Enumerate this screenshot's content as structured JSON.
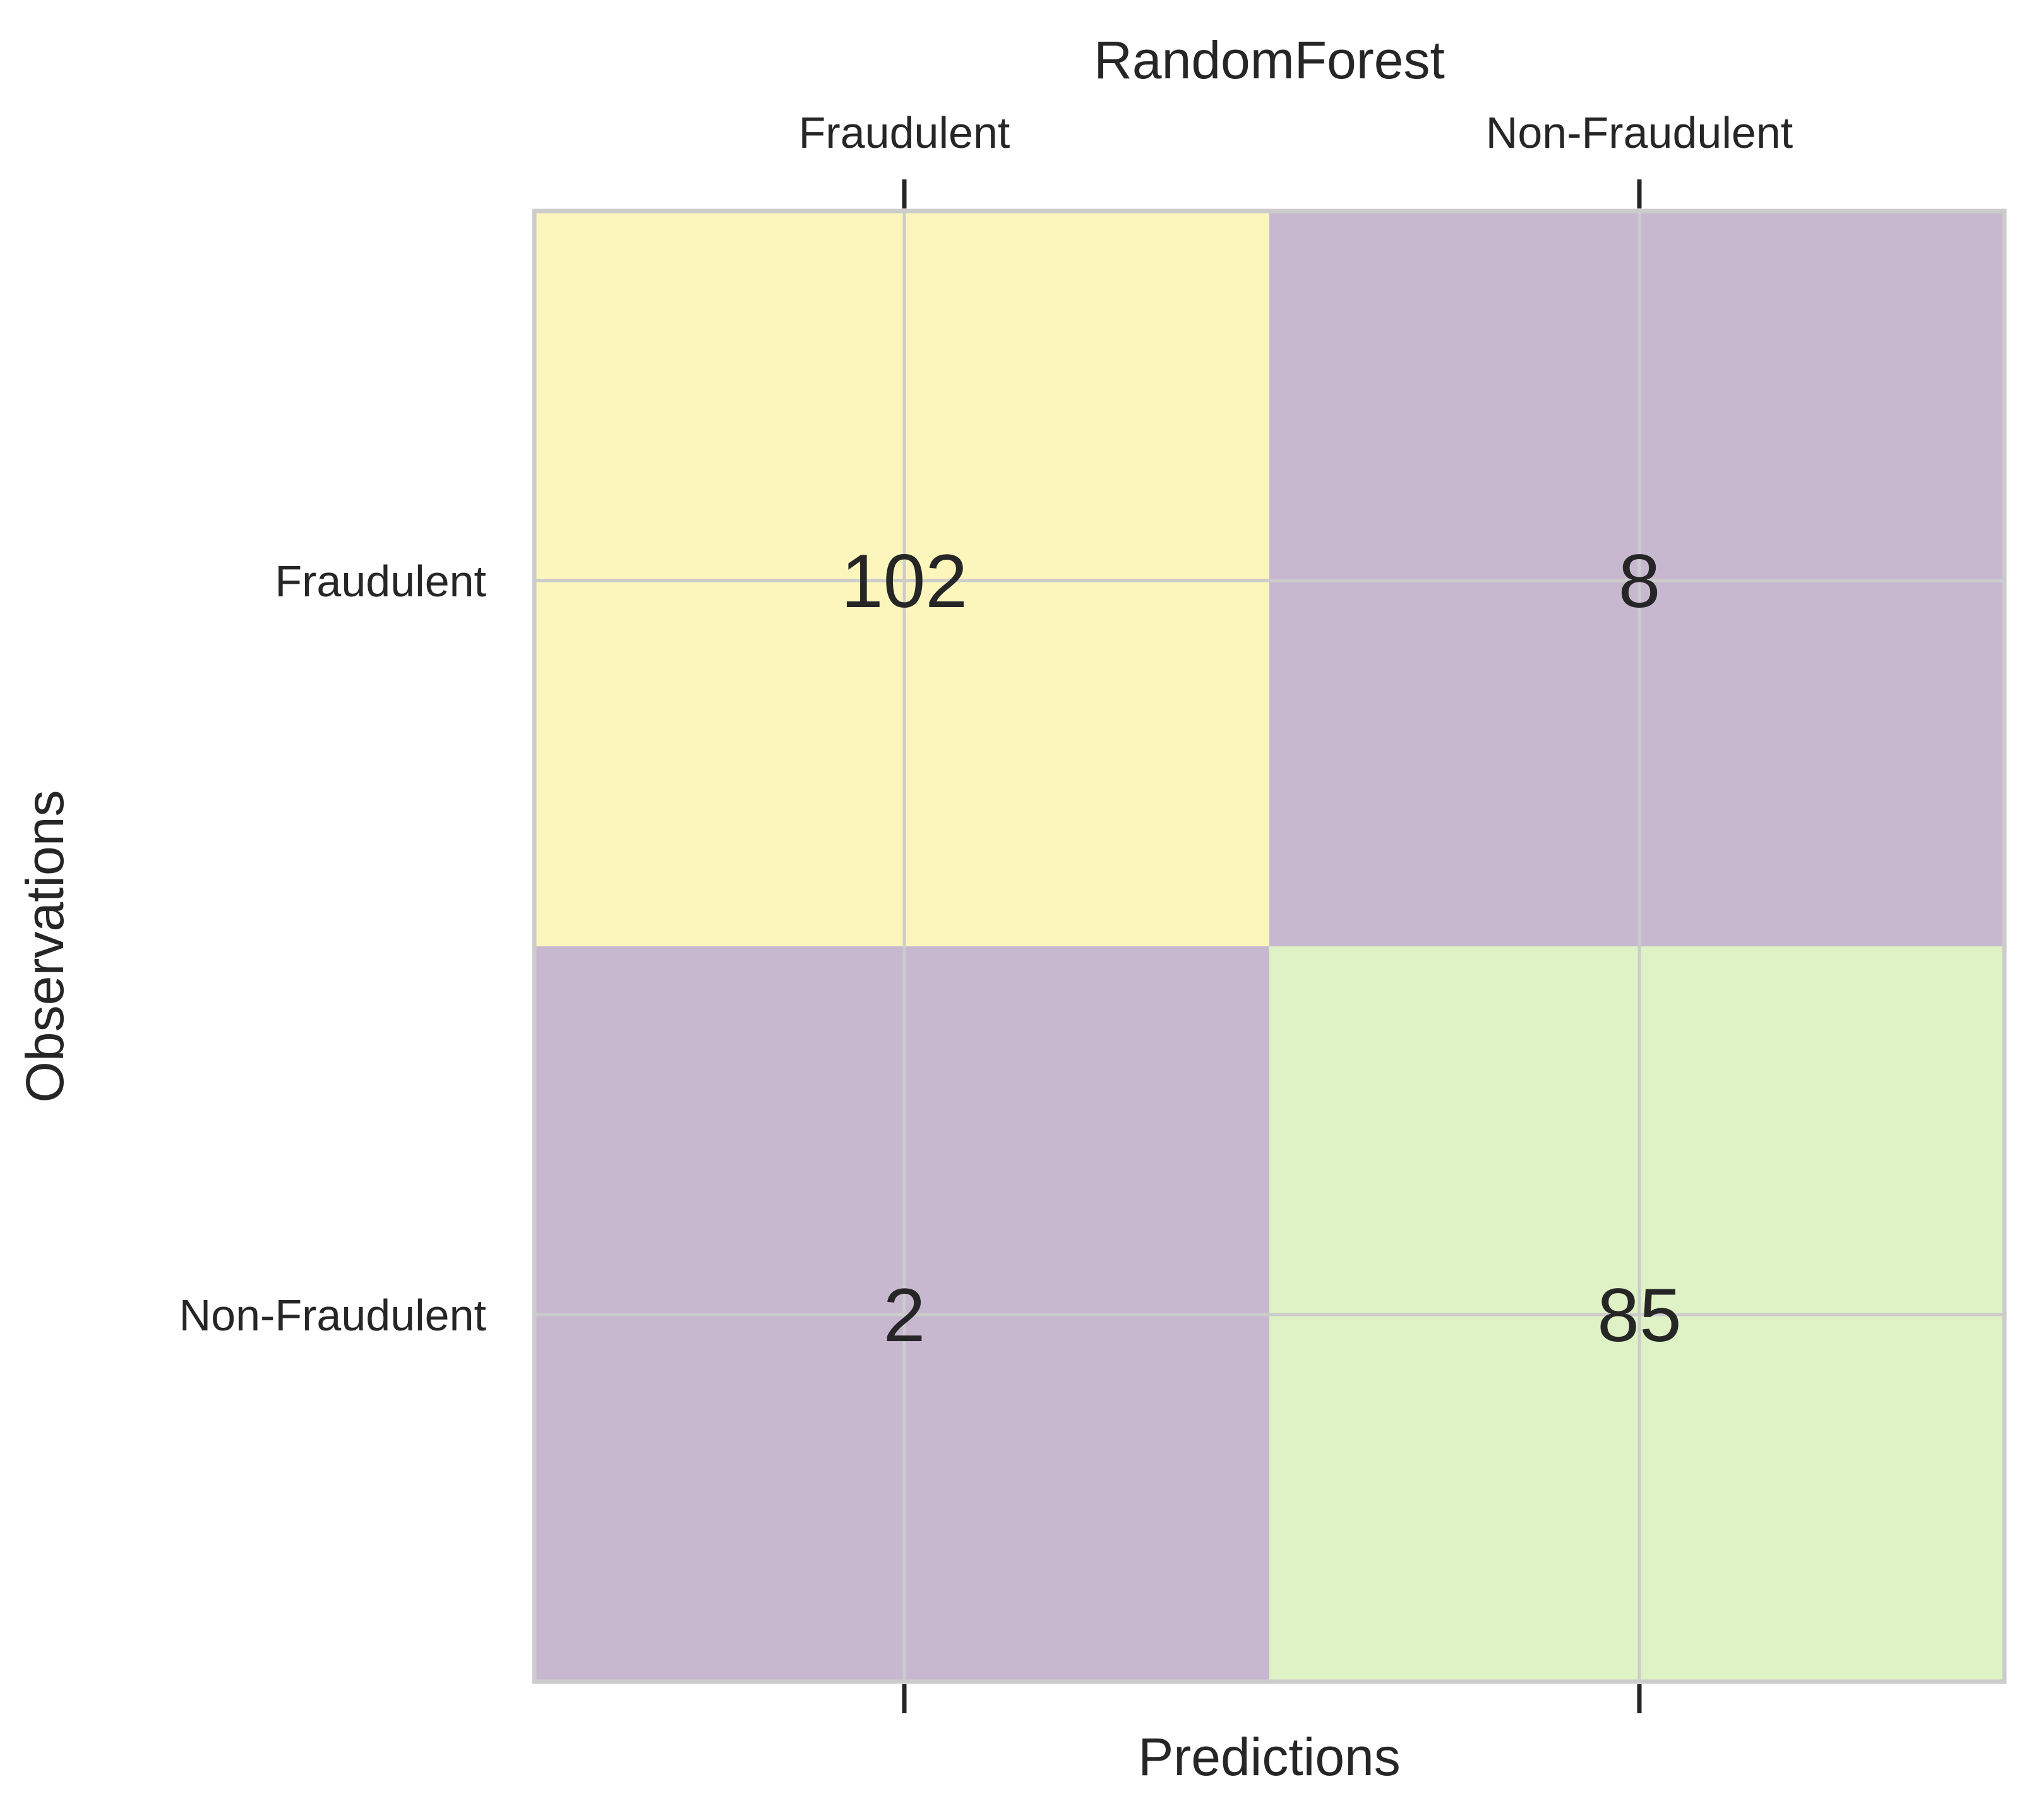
{
  "chart_data": {
    "type": "heatmap",
    "title": "RandomForest",
    "xlabel": "Predictions",
    "ylabel": "Observations",
    "x_categories": [
      "Fraudulent",
      "Non-Fraudulent"
    ],
    "y_categories": [
      "Fraudulent",
      "Non-Fraudulent"
    ],
    "values": [
      [
        102,
        8
      ],
      [
        2,
        85
      ]
    ],
    "colormap": "viridis (alpha ~0.3)",
    "x_tick_position": "top",
    "grid": true
  },
  "colors": {
    "cell_fill": [
      [
        "#fcf6bd",
        "#c7b8d0"
      ],
      [
        "#c7b8d0",
        "#dff2c6"
      ]
    ],
    "grid": "#cccccc",
    "frame": "#cccccc",
    "text": "#262626"
  }
}
